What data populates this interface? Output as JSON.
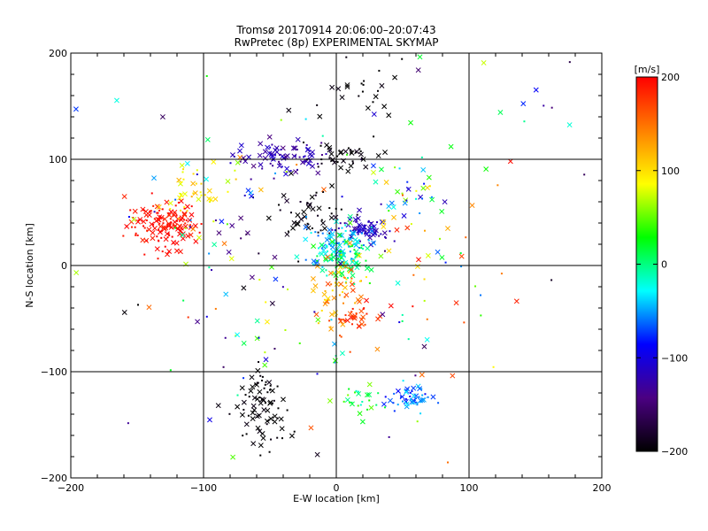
{
  "chart_data": {
    "type": "scatter",
    "title": "Tromsø 20170914 20:06:00–20:07:43",
    "subtitle": "RwPretec (8p) EXPERIMENTAL SKYMAP",
    "xlabel": "E-W location [km]",
    "ylabel": "N-S location [km]",
    "xlim": [
      -200,
      200
    ],
    "ylim": [
      -200,
      200
    ],
    "xticks": [
      -200,
      -100,
      0,
      100,
      200
    ],
    "yticks": [
      -200,
      -100,
      0,
      100,
      200
    ],
    "x_tick_labels": [
      "−200",
      "−100",
      "0",
      "100",
      "200"
    ],
    "y_tick_labels": [
      "−200",
      "−100",
      "0",
      "100",
      "200"
    ],
    "grid": true,
    "marker_types": [
      "cross",
      "dot"
    ],
    "colorbar": {
      "label": "[m/s]",
      "range": [
        -200,
        200
      ],
      "ticks": [
        200,
        100,
        0,
        -100,
        -200
      ],
      "tick_labels": [
        "200",
        "100",
        "0",
        "−100",
        "−200"
      ],
      "colors": [
        "#000000",
        "#4b0082",
        "#0000ff",
        "#00ffff",
        "#00ff00",
        "#ffff00",
        "#ff8000",
        "#ff0000"
      ]
    },
    "clusters": [
      {
        "cx": -130,
        "cy": 38,
        "sx": 14,
        "sy": 12,
        "n": 140,
        "vmean": 195,
        "vspread": 12
      },
      {
        "cx": -105,
        "cy": 65,
        "sx": 14,
        "sy": 14,
        "n": 40,
        "vmean": 95,
        "vspread": 30
      },
      {
        "cx": -40,
        "cy": 103,
        "sx": 18,
        "sy": 8,
        "n": 80,
        "vmean": -125,
        "vspread": 20
      },
      {
        "cx": 0,
        "cy": 102,
        "sx": 15,
        "sy": 6,
        "n": 40,
        "vmean": -200,
        "vspread": 15
      },
      {
        "cx": -20,
        "cy": 52,
        "sx": 15,
        "sy": 12,
        "n": 50,
        "vmean": -195,
        "vspread": 15
      },
      {
        "cx": 20,
        "cy": 33,
        "sx": 10,
        "sy": 6,
        "n": 70,
        "vmean": -120,
        "vspread": 15
      },
      {
        "cx": 0,
        "cy": 20,
        "sx": 12,
        "sy": 10,
        "n": 90,
        "vmean": -40,
        "vspread": 25
      },
      {
        "cx": 5,
        "cy": 5,
        "sx": 10,
        "sy": 10,
        "n": 80,
        "vmean": 10,
        "vspread": 30
      },
      {
        "cx": 2,
        "cy": -20,
        "sx": 10,
        "sy": 18,
        "n": 60,
        "vmean": 130,
        "vspread": 40
      },
      {
        "cx": 15,
        "cy": -50,
        "sx": 10,
        "sy": 10,
        "n": 35,
        "vmean": 180,
        "vspread": 20
      },
      {
        "cx": -55,
        "cy": -135,
        "sx": 9,
        "sy": 20,
        "n": 80,
        "vmean": -200,
        "vspread": 10
      },
      {
        "cx": 55,
        "cy": -125,
        "sx": 8,
        "sy": 6,
        "n": 50,
        "vmean": -60,
        "vspread": 30
      },
      {
        "cx": 20,
        "cy": -128,
        "sx": 10,
        "sy": 8,
        "n": 25,
        "vmean": 20,
        "vspread": 40
      },
      {
        "cx": 25,
        "cy": 160,
        "sx": 15,
        "sy": 15,
        "n": 25,
        "vmean": -200,
        "vspread": 10
      },
      {
        "cx": 50,
        "cy": 70,
        "sx": 20,
        "sy": 25,
        "n": 40,
        "vmean": 0,
        "vspread": 120
      },
      {
        "cx": -85,
        "cy": 40,
        "sx": 25,
        "sy": 30,
        "n": 40,
        "vmean": 0,
        "vspread": 150
      },
      {
        "cx": -60,
        "cy": -40,
        "sx": 30,
        "sy": 35,
        "n": 30,
        "vmean": -50,
        "vspread": 150
      },
      {
        "cx": 60,
        "cy": -10,
        "sx": 35,
        "sy": 40,
        "n": 30,
        "vmean": 100,
        "vspread": 100
      },
      {
        "cx": 0,
        "cy": 0,
        "sx": 110,
        "sy": 110,
        "n": 110,
        "vmean": 0,
        "vspread": 200
      }
    ]
  }
}
